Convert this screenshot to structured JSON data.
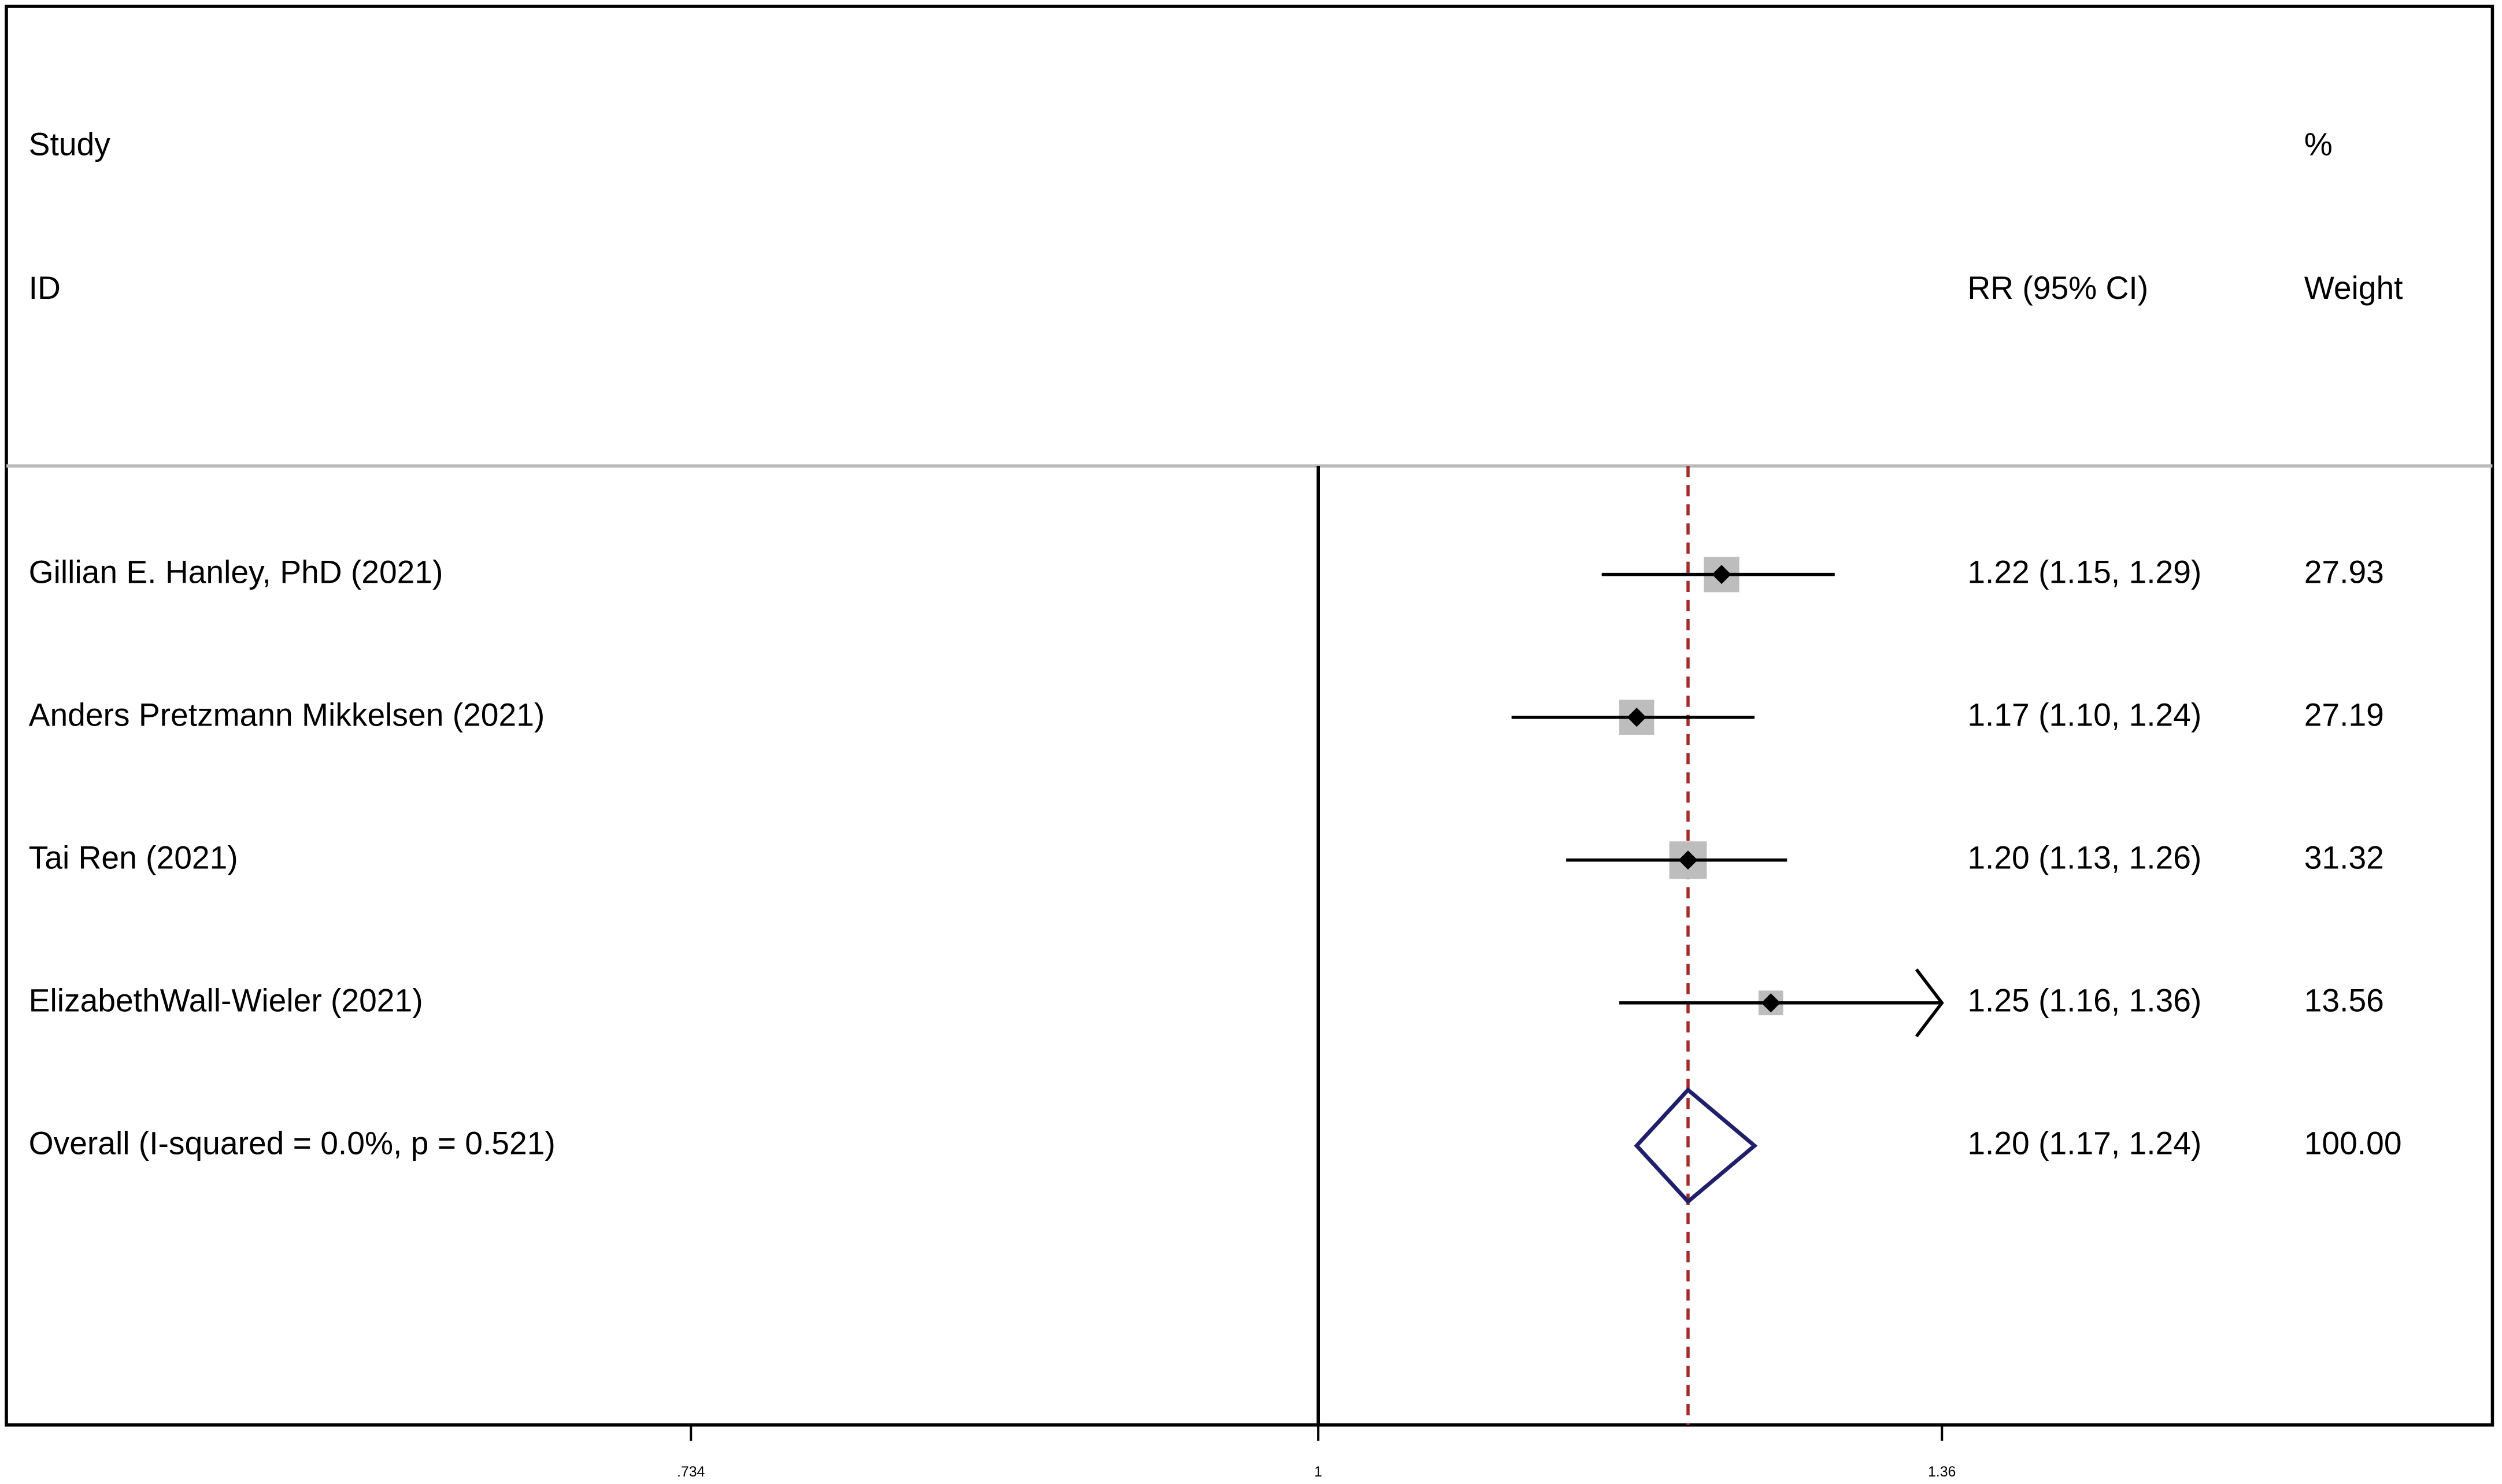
{
  "chart_data": {
    "type": "forest",
    "headers": {
      "study": "Study",
      "id": "ID",
      "effect": "RR (95% CI)",
      "percent": "%",
      "weight": "Weight"
    },
    "categories": [
      "Gillian E. Hanley, PhD (2021)",
      "Anders Pretzmann Mikkelsen (2021)",
      "Tai Ren (2021)",
      "ElizabethWall-Wieler (2021)"
    ],
    "values": [
      1.22,
      1.17,
      1.2,
      1.25
    ],
    "ci_lower": [
      1.15,
      1.1,
      1.13,
      1.16
    ],
    "ci_upper": [
      1.29,
      1.24,
      1.26,
      1.36
    ],
    "value_labels": [
      "1.22 (1.15, 1.29)",
      "1.17 (1.10, 1.24)",
      "1.20 (1.13, 1.26)",
      "1.25 (1.16, 1.36)"
    ],
    "weights": [
      27.93,
      27.19,
      31.32,
      13.56
    ],
    "overall": {
      "label": "Overall  (I-squared = 0.0%, p = 0.521)",
      "value": 1.2,
      "ci_lower": 1.17,
      "ci_upper": 1.24,
      "value_label": "1.20 (1.17, 1.24)",
      "weight_label": "100.00",
      "color": "#1f1f6b"
    },
    "null_line": 1,
    "reference_color": "#a52a2a",
    "box_color": "#bdbdbd",
    "log_scale": true,
    "xlim": [
      0.734,
      1.36
    ],
    "xticks": [
      {
        "value": 0.734,
        "label": ".734"
      },
      1,
      1.36
    ]
  }
}
